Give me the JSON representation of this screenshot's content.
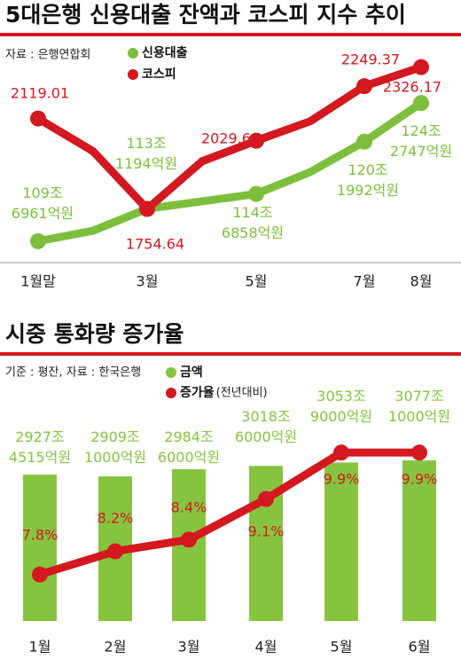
{
  "chart_data": [
    {
      "type": "line",
      "title": "5대은행 신용대출 잔액과 코스피 지수 추이",
      "source": "자료 : 은행연합회",
      "categories": [
        "1월말",
        null,
        "3월",
        null,
        "5월",
        null,
        "7월",
        "8월"
      ],
      "ylim": [
        108,
        130
      ],
      "y2lim": [
        1560,
        2400
      ],
      "series": [
        {
          "name": "신용대출",
          "color": "#7dbf3c",
          "values": [
            109.6961,
            110.8,
            113.1194,
            113.9,
            114.6858,
            117,
            120.1992,
            124.2747
          ],
          "value_labels": [
            "109조 6961억원",
            null,
            "113조 1194억원",
            null,
            "114조 6858억원",
            null,
            "120조 1992억원",
            "124조 2747억원"
          ]
        },
        {
          "name": "코스피",
          "color": "#d3181f",
          "axis": "y2",
          "values": [
            2119.01,
            1987,
            1754.64,
            1947,
            2029.6,
            2108,
            2249.37,
            2326.17
          ],
          "value_labels": [
            "2119.01",
            null,
            "1754.64",
            null,
            "2029.6",
            null,
            "2249.37",
            "2326.17"
          ]
        }
      ]
    },
    {
      "type": "combo",
      "title": "시중 통화량 증가율",
      "source": "기준 : 평잔, 자료 : 한국은행",
      "categories": [
        "1월",
        "2월",
        "3월",
        "4월",
        "5월",
        "6월"
      ],
      "ylim": [
        1400,
        3400
      ],
      "y2lim": [
        7,
        10.3
      ],
      "series": [
        {
          "name": "금액",
          "color": "#86c440",
          "values": [
            2927.4515,
            2909.1,
            2984.6,
            3018.6,
            3053.9,
            3077.1
          ],
          "value_labels": [
            "2927조 4515억원",
            "2909조 1000억원",
            "2984조 6000억원",
            "3018조 6000억원",
            "3053조 9000억원",
            "3077조 1000억원"
          ]
        },
        {
          "name": "증가율",
          "note": "(전년대비)",
          "color": "#d3181f",
          "axis": "y2",
          "values": [
            7.8,
            8.2,
            8.4,
            9.1,
            9.9,
            9.9
          ],
          "value_labels": [
            "7.8%",
            "8.2%",
            "8.4%",
            "9.1%",
            "9.9%",
            "9.9%"
          ]
        }
      ]
    }
  ]
}
